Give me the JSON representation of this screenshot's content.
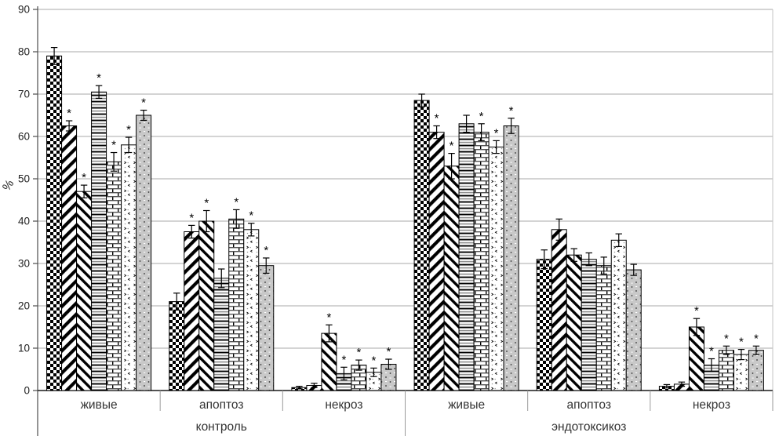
{
  "chart_data": {
    "type": "bar",
    "title": "",
    "ylabel": "%",
    "xlabel": "",
    "ylim": [
      0,
      90
    ],
    "yticks": [
      0,
      10,
      20,
      30,
      40,
      50,
      60,
      70,
      80,
      90
    ],
    "grid": true,
    "legend_position": "none",
    "significance_marker": "*",
    "groups": [
      "контроль",
      "эндотоксикоз"
    ],
    "categories": [
      "живые",
      "апоптоз",
      "некроз"
    ],
    "cells_order": [
      "контроль/живые",
      "контроль/апоптоз",
      "контроль/некроз",
      "эндотоксикоз/живые",
      "эндотоксикоз/апоптоз",
      "эндотоксикоз/некроз"
    ],
    "series": [
      {
        "name": "series-1-checkerboard",
        "pattern": "checkerboard",
        "values": [
          79,
          21,
          0.7,
          68.5,
          31,
          1
        ],
        "errors": [
          2,
          2,
          0.3,
          1.5,
          2.2,
          0.4
        ],
        "sig": [
          0,
          0,
          0,
          0,
          0,
          0
        ]
      },
      {
        "name": "series-2-diagonal-up",
        "pattern": "diagonal-up",
        "values": [
          62.5,
          37.5,
          1.2,
          61,
          38,
          1.5
        ],
        "errors": [
          1.2,
          1.5,
          0.5,
          1.5,
          2.5,
          0.5
        ],
        "sig": [
          1,
          1,
          0,
          1,
          0,
          0
        ]
      },
      {
        "name": "series-3-diagonal-down",
        "pattern": "diagonal-down",
        "values": [
          47,
          40,
          13.5,
          53,
          32,
          15
        ],
        "errors": [
          1.5,
          2.5,
          2,
          3,
          1.5,
          2
        ],
        "sig": [
          1,
          1,
          1,
          1,
          0,
          1
        ]
      },
      {
        "name": "series-4-horizontal-lines",
        "pattern": "horizontal-lines",
        "values": [
          70.5,
          26.5,
          4,
          63,
          31,
          6
        ],
        "errors": [
          1.5,
          2.2,
          1.5,
          2,
          1.5,
          1.5
        ],
        "sig": [
          1,
          0,
          1,
          0,
          0,
          1
        ]
      },
      {
        "name": "series-5-brick",
        "pattern": "brick",
        "values": [
          54,
          40.5,
          6,
          61,
          29.5,
          9.5
        ],
        "errors": [
          2.2,
          2.2,
          1.2,
          2,
          2,
          1
        ],
        "sig": [
          1,
          1,
          1,
          1,
          0,
          1
        ]
      },
      {
        "name": "series-6-speckle",
        "pattern": "speckle",
        "values": [
          58,
          38,
          4.3,
          57.5,
          35.5,
          8.5
        ],
        "errors": [
          1.8,
          1.5,
          1,
          1.5,
          1.5,
          1.2
        ],
        "sig": [
          1,
          1,
          1,
          1,
          0,
          1
        ]
      },
      {
        "name": "series-7-gray-dotted",
        "pattern": "gray-dotted",
        "values": [
          65,
          29.5,
          6.2,
          62.5,
          28.5,
          9.5
        ],
        "errors": [
          1.2,
          1.8,
          1.2,
          1.8,
          1.3,
          1
        ],
        "sig": [
          1,
          1,
          1,
          1,
          0,
          1
        ]
      }
    ],
    "colors": {
      "bar_outline": "#000000",
      "gridline": "#a8a8a8",
      "axis": "#4d4d4d",
      "baseline": "#1a1a1a",
      "gray_fill": "#c8c8c8",
      "label_text": "#333333"
    }
  }
}
